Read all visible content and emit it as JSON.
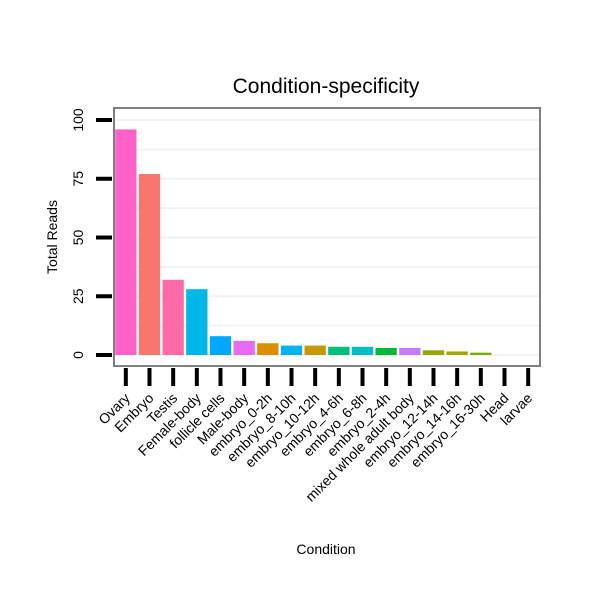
{
  "chart_data": {
    "type": "bar",
    "title": "Condition-specificity",
    "xlabel": "Condition",
    "ylabel": "Total Reads",
    "ylim": [
      0,
      100
    ],
    "yticks": [
      0,
      25,
      50,
      75,
      100
    ],
    "grid": true,
    "categories": [
      "Ovary",
      "Embryo",
      "Testis",
      "Female-body",
      "follicle cells",
      "Male-body",
      "embryo_0-2h",
      "embryo_8-10h",
      "embryo_10-12h",
      "embryo_4-6h",
      "embryo_6-8h",
      "embryo_2-4h",
      "mixed whole adult body",
      "embryo_12-14h",
      "embryo_14-16h",
      "embryo_16-30h",
      "Head",
      "larvae"
    ],
    "values": [
      96,
      77,
      32,
      28,
      8,
      6,
      5,
      4,
      4,
      3.5,
      3.5,
      3,
      3,
      2,
      1.5,
      1,
      0,
      0
    ],
    "colors": [
      "#FF61C9",
      "#F8766D",
      "#FF6BA8",
      "#00B8E5",
      "#00A9FF",
      "#E76BF3",
      "#DE8C00",
      "#00B4EF",
      "#C49A00",
      "#00BF7D",
      "#00BFC4",
      "#00BA38",
      "#C77CFF",
      "#99A800",
      "#A3A500",
      "#7CAE00",
      "#F564E3",
      "#00C08B"
    ]
  }
}
